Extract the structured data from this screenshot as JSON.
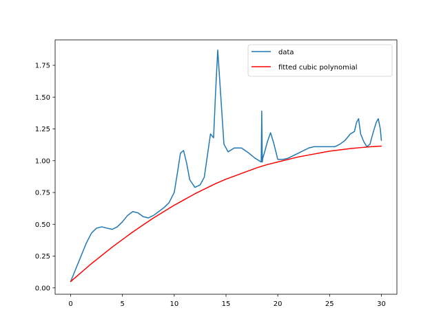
{
  "chart_data": {
    "type": "line",
    "title": "",
    "xlabel": "",
    "ylabel": "",
    "xlim": [
      -1.5,
      31.5
    ],
    "ylim": [
      -0.05,
      1.95
    ],
    "x_ticks": [
      0,
      5,
      10,
      15,
      20,
      25,
      30
    ],
    "x_tick_labels": [
      "0",
      "5",
      "10",
      "15",
      "20",
      "25",
      "30"
    ],
    "y_ticks": [
      0.0,
      0.25,
      0.5,
      0.75,
      1.0,
      1.25,
      1.5,
      1.75
    ],
    "y_tick_labels": [
      "0.00",
      "0.25",
      "0.50",
      "0.75",
      "1.00",
      "1.25",
      "1.50",
      "1.75"
    ],
    "grid": false,
    "legend_position": "top-right",
    "series": [
      {
        "name": "data",
        "color": "#1f77b4",
        "x": [
          0,
          0.5,
          1,
          1.5,
          2,
          2.5,
          3,
          3.5,
          4,
          4.5,
          5,
          5.5,
          6,
          6.5,
          7,
          7.5,
          8,
          8.5,
          9,
          9.5,
          10,
          10.3,
          10.6,
          10.9,
          11.2,
          11.5,
          12,
          12.5,
          12.9,
          13.2,
          13.5,
          13.8,
          14.0,
          14.2,
          14.5,
          14.8,
          15.2,
          15.8,
          16.5,
          17.2,
          17.8,
          18.4,
          18.45,
          18.5,
          18.55,
          18.7,
          19.0,
          19.3,
          19.6,
          20.0,
          20.5,
          21.0,
          21.5,
          22.0,
          22.5,
          23.0,
          23.5,
          24.0,
          24.5,
          25.0,
          25.5,
          26.0,
          26.5,
          27.0,
          27.4,
          27.6,
          27.8,
          28.0,
          28.3,
          28.6,
          28.9,
          29.2,
          29.5,
          29.7,
          29.9,
          30.0
        ],
        "y": [
          0.05,
          0.15,
          0.25,
          0.35,
          0.43,
          0.47,
          0.48,
          0.47,
          0.46,
          0.48,
          0.52,
          0.57,
          0.6,
          0.59,
          0.56,
          0.55,
          0.57,
          0.6,
          0.63,
          0.67,
          0.75,
          0.9,
          1.06,
          1.08,
          0.98,
          0.85,
          0.79,
          0.81,
          0.87,
          1.04,
          1.21,
          1.18,
          1.55,
          1.87,
          1.5,
          1.13,
          1.07,
          1.1,
          1.1,
          1.06,
          1.02,
          0.99,
          1.39,
          0.99,
          1.02,
          1.06,
          1.15,
          1.22,
          1.14,
          1.01,
          1.01,
          1.02,
          1.04,
          1.06,
          1.08,
          1.1,
          1.11,
          1.11,
          1.11,
          1.11,
          1.11,
          1.13,
          1.16,
          1.21,
          1.23,
          1.3,
          1.33,
          1.21,
          1.15,
          1.11,
          1.13,
          1.22,
          1.3,
          1.33,
          1.25,
          1.16
        ]
      },
      {
        "name": "fitted cubic polynomial",
        "color": "#ff0000",
        "x": [
          0,
          1,
          2,
          3,
          4,
          5,
          6,
          7,
          8,
          9,
          10,
          11,
          12,
          13,
          14,
          15,
          16,
          17,
          18,
          19,
          20,
          21,
          22,
          23,
          24,
          25,
          26,
          27,
          28,
          29,
          30
        ],
        "y": [
          0.05,
          0.12,
          0.19,
          0.255,
          0.32,
          0.38,
          0.44,
          0.495,
          0.55,
          0.6,
          0.65,
          0.695,
          0.74,
          0.78,
          0.82,
          0.855,
          0.885,
          0.915,
          0.945,
          0.97,
          0.99,
          1.01,
          1.03,
          1.045,
          1.06,
          1.075,
          1.085,
          1.095,
          1.103,
          1.11,
          1.115
        ]
      }
    ]
  }
}
